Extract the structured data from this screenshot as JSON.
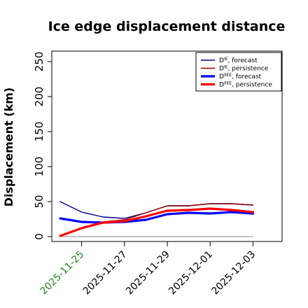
{
  "chart_data": {
    "type": "line",
    "title": "Ice edge displacement distance",
    "xlabel": "",
    "ylabel": "Displacement (km)",
    "ylim": [
      0,
      260
    ],
    "yticks": [
      0,
      50,
      100,
      150,
      200,
      250
    ],
    "x": [
      "2025-11-24",
      "2025-11-25",
      "2025-11-26",
      "2025-11-27",
      "2025-11-28",
      "2025-11-29",
      "2025-11-30",
      "2025-12-01",
      "2025-12-02",
      "2025-12-03"
    ],
    "xtick_labels": [
      "2025-11-25",
      "2025-11-27",
      "2025-11-29",
      "2025-12-01",
      "2025-12-03"
    ],
    "xtick_highlight": "2025-11-25",
    "xtick_highlight_color": "#228B22",
    "grid": false,
    "legend_position": "top-right",
    "baseline": 0,
    "series": [
      {
        "name": "D^IE, forecast",
        "legend_main": "D",
        "legend_sup": "IE",
        "legend_rest": ", forecast",
        "color": "#00008B",
        "width": 1.4,
        "values": [
          50,
          35,
          28,
          26,
          34,
          44,
          44,
          47,
          47,
          45
        ]
      },
      {
        "name": "D^IE, persistence",
        "legend_main": "D",
        "legend_sup": "IE",
        "legend_rest": ", persistence",
        "color": "#8B0000",
        "width": 1.4,
        "values": [
          null,
          13,
          21,
          24,
          34,
          44,
          44,
          47,
          47,
          45
        ]
      },
      {
        "name": "D^IIEE, forecast",
        "legend_main": "D",
        "legend_sup": "IIEE",
        "legend_rest": ", forecast",
        "color": "#0000FF",
        "width": 3.2,
        "values": [
          26,
          21,
          20,
          21,
          24,
          32,
          34,
          33,
          35,
          33
        ]
      },
      {
        "name": "D^IIEE, persistence",
        "legend_main": "D",
        "legend_sup": "IIEE",
        "legend_rest": ", persistence",
        "color": "#FF0000",
        "width": 3.2,
        "values": [
          1,
          12,
          20,
          22,
          29,
          37,
          38,
          40,
          38,
          35
        ]
      }
    ]
  }
}
